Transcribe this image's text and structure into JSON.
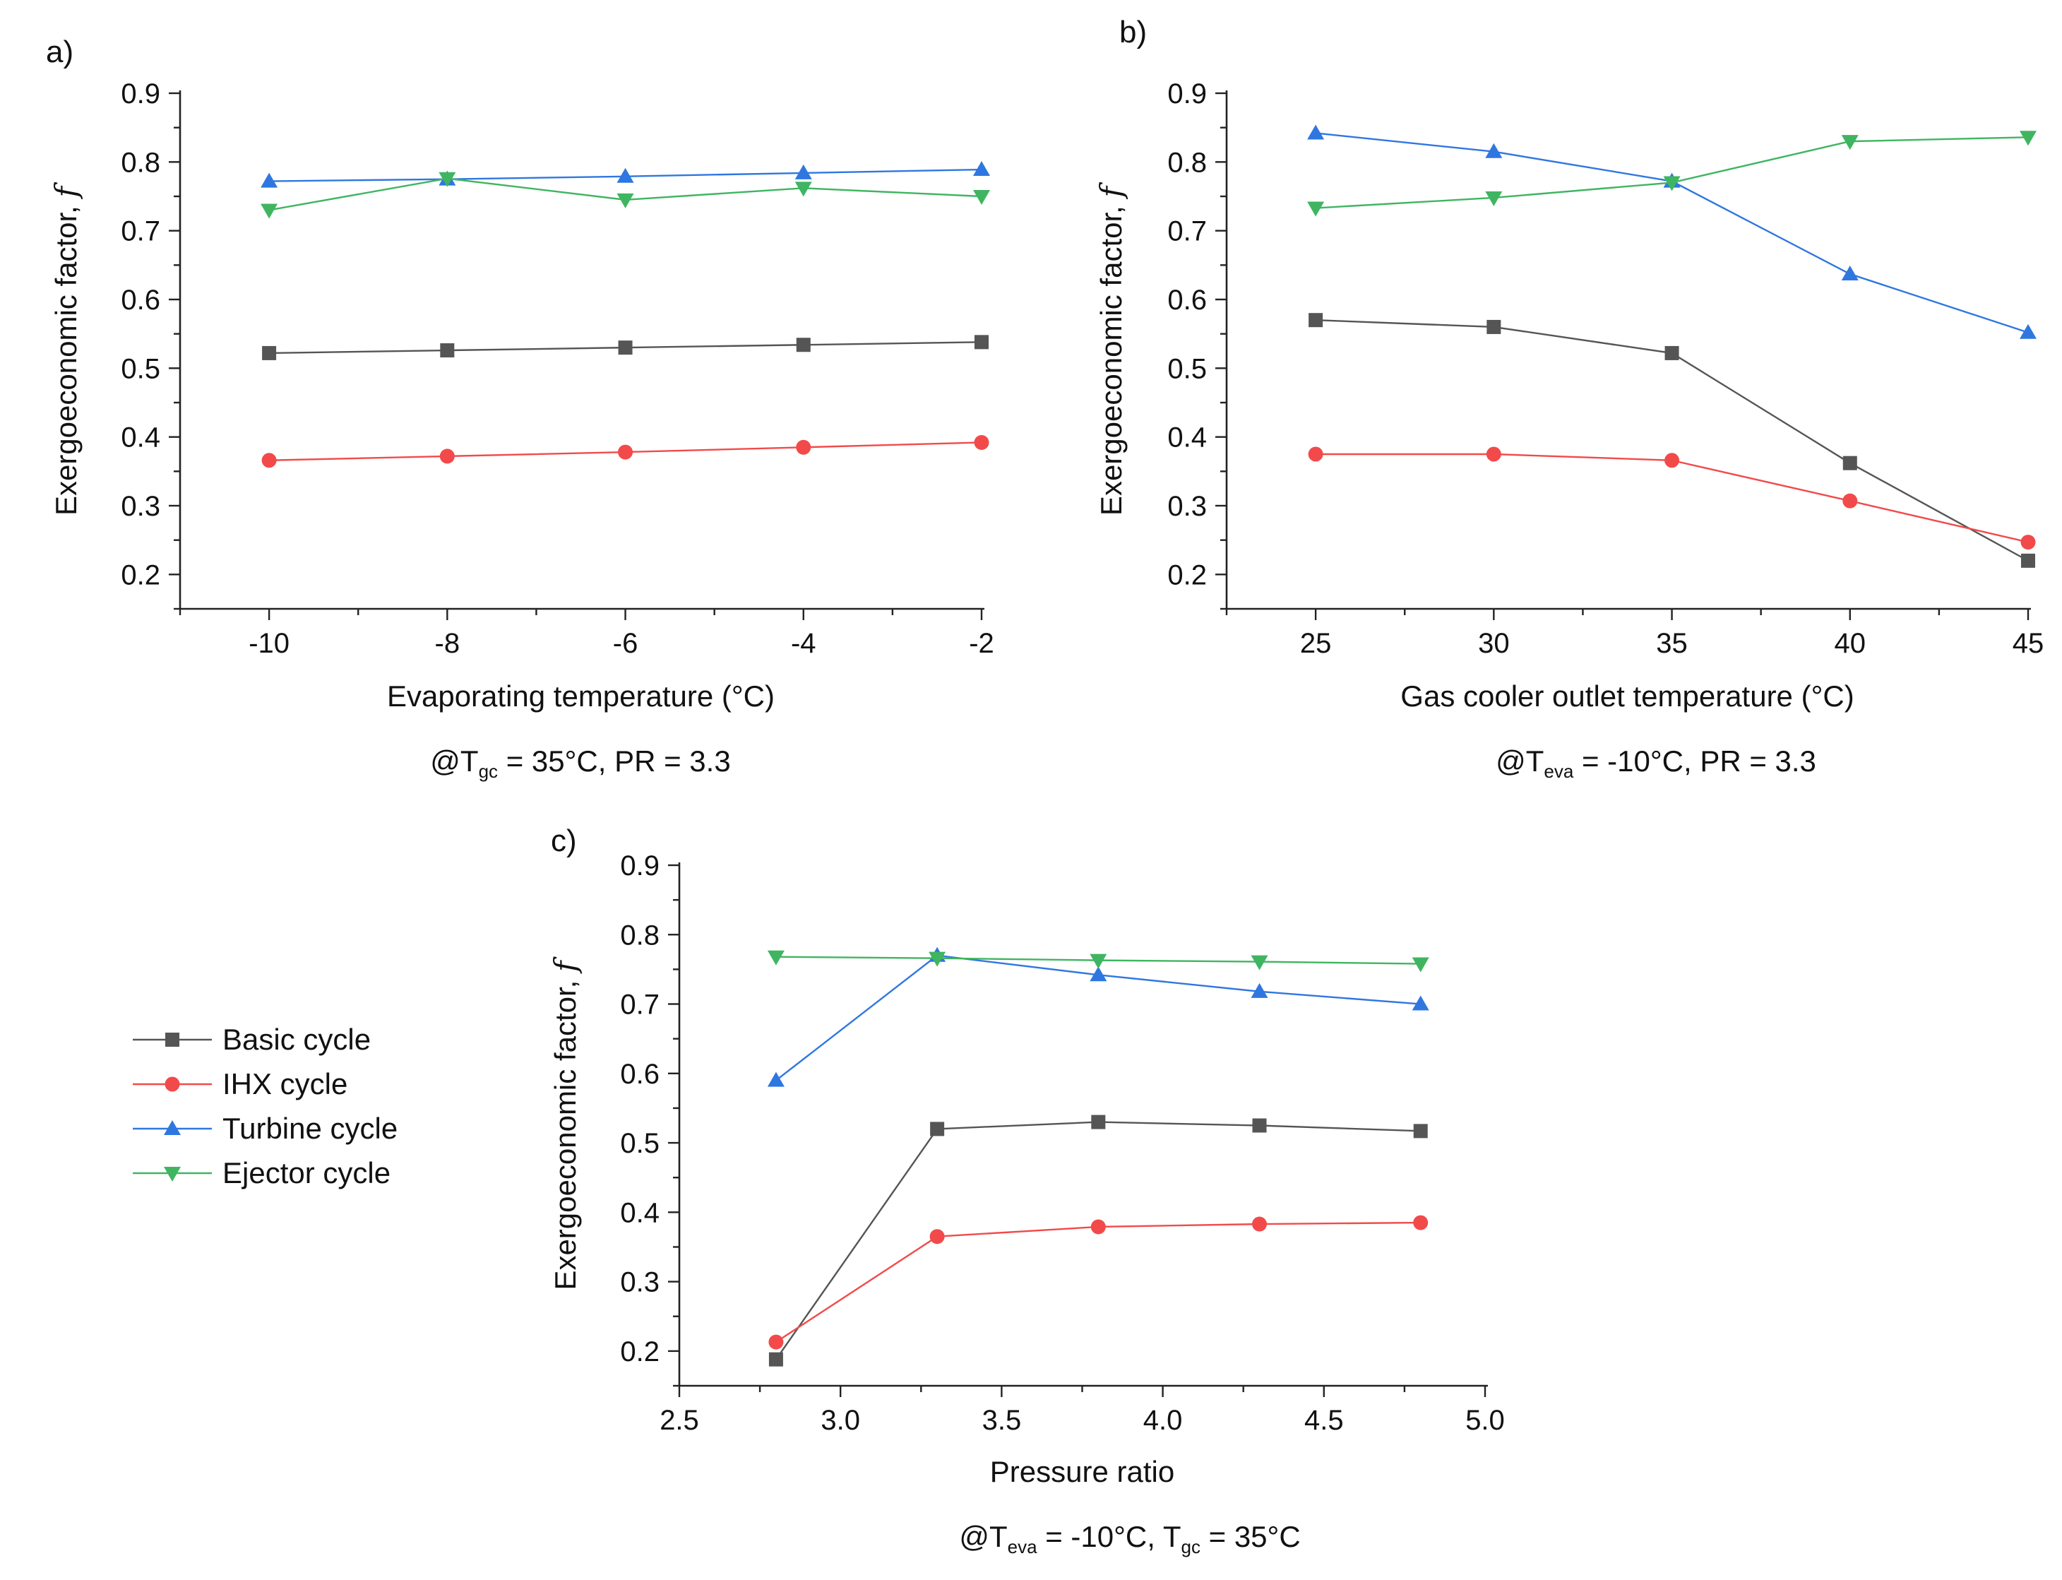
{
  "series_styles": [
    {
      "key": "basic",
      "name": "Basic cycle",
      "color": "#555555",
      "marker": "square"
    },
    {
      "key": "ihx",
      "name": "IHX cycle",
      "color": "#f24a4a",
      "marker": "circle"
    },
    {
      "key": "turbine",
      "name": "Turbine cycle",
      "color": "#2f77e0",
      "marker": "triangle-up"
    },
    {
      "key": "ejector",
      "name": "Ejector cycle",
      "color": "#3fb561",
      "marker": "triangle-down"
    }
  ],
  "legend": {
    "placement": "left-middle",
    "items": [
      "Basic cycle",
      "IHX cycle",
      "Turbine cycle",
      "Ejector cycle"
    ]
  },
  "chart_data": [
    {
      "panel_label": "a)",
      "type": "line",
      "xlabel": "Evaporating temperature (°C)",
      "ylabel_main": "Exergoeconomic factor, ",
      "ylabel_italic": "f",
      "xlim": [
        -11,
        -2
      ],
      "ylim": [
        0.15,
        0.9
      ],
      "xticks": [
        -10,
        -8,
        -6,
        -4,
        -2
      ],
      "xtick_labels": [
        "-10",
        "-8",
        "-6",
        "-4",
        "-2"
      ],
      "yticks": [
        0.2,
        0.3,
        0.4,
        0.5,
        0.6,
        0.7,
        0.8,
        0.9
      ],
      "ytick_labels": [
        "0.2",
        "0.3",
        "0.4",
        "0.5",
        "0.6",
        "0.7",
        "0.8",
        "0.9"
      ],
      "x": [
        -10,
        -8,
        -6,
        -4,
        -2
      ],
      "series": [
        {
          "name": "Basic cycle",
          "values": [
            0.522,
            0.526,
            0.53,
            0.534,
            0.538
          ]
        },
        {
          "name": "IHX cycle",
          "values": [
            0.366,
            0.372,
            0.378,
            0.385,
            0.392
          ]
        },
        {
          "name": "Turbine cycle",
          "values": [
            0.772,
            0.775,
            0.779,
            0.784,
            0.789
          ]
        },
        {
          "name": "Ejector cycle",
          "values": [
            0.73,
            0.776,
            0.745,
            0.762,
            0.75
          ]
        }
      ],
      "caption": {
        "prefix": "@T",
        "sub": "gc",
        "suffix": " = 35°C, PR = 3.3"
      }
    },
    {
      "panel_label": "b)",
      "type": "line",
      "xlabel": "Gas cooler outlet temperature (°C)",
      "ylabel_main": "Exergoeconomic factor, ",
      "ylabel_italic": "f",
      "xlim": [
        22.5,
        45
      ],
      "ylim": [
        0.15,
        0.9
      ],
      "xticks": [
        25,
        30,
        35,
        40,
        45
      ],
      "xtick_labels": [
        "25",
        "30",
        "35",
        "40",
        "45"
      ],
      "yticks": [
        0.2,
        0.3,
        0.4,
        0.5,
        0.6,
        0.7,
        0.8,
        0.9
      ],
      "ytick_labels": [
        "0.2",
        "0.3",
        "0.4",
        "0.5",
        "0.6",
        "0.7",
        "0.8",
        "0.9"
      ],
      "x": [
        25,
        30,
        35,
        40,
        45
      ],
      "series": [
        {
          "name": "Basic cycle",
          "values": [
            0.57,
            0.56,
            0.522,
            0.362,
            0.22
          ]
        },
        {
          "name": "IHX cycle",
          "values": [
            0.375,
            0.375,
            0.366,
            0.307,
            0.247
          ]
        },
        {
          "name": "Turbine cycle",
          "values": [
            0.842,
            0.815,
            0.772,
            0.637,
            0.552
          ]
        },
        {
          "name": "Ejector cycle",
          "values": [
            0.733,
            0.748,
            0.77,
            0.83,
            0.836
          ]
        }
      ],
      "caption": {
        "prefix": "@T",
        "sub": "eva",
        "suffix": " = -10°C, PR = 3.3"
      }
    },
    {
      "panel_label": "c)",
      "type": "line",
      "xlabel": "Pressure ratio",
      "ylabel_main": "Exergoeconomic factor, ",
      "ylabel_italic": "f",
      "xlim": [
        2.5,
        5.0
      ],
      "ylim": [
        0.15,
        0.9
      ],
      "xticks": [
        2.5,
        3.0,
        3.5,
        4.0,
        4.5,
        5.0
      ],
      "xtick_labels": [
        "2.5",
        "3.0",
        "3.5",
        "4.0",
        "4.5",
        "5.0"
      ],
      "yticks": [
        0.2,
        0.3,
        0.4,
        0.5,
        0.6,
        0.7,
        0.8,
        0.9
      ],
      "ytick_labels": [
        "0.2",
        "0.3",
        "0.4",
        "0.5",
        "0.6",
        "0.7",
        "0.8",
        "0.9"
      ],
      "x": [
        2.8,
        3.3,
        3.8,
        4.3,
        4.8
      ],
      "series": [
        {
          "name": "Basic cycle",
          "values": [
            0.188,
            0.52,
            0.53,
            0.525,
            0.517
          ]
        },
        {
          "name": "IHX cycle",
          "values": [
            0.213,
            0.365,
            0.379,
            0.383,
            0.385
          ]
        },
        {
          "name": "Turbine cycle",
          "values": [
            0.59,
            0.77,
            0.742,
            0.718,
            0.7
          ]
        },
        {
          "name": "Ejector cycle",
          "values": [
            0.768,
            0.766,
            0.763,
            0.761,
            0.758
          ]
        }
      ],
      "caption": {
        "prefix": "@T",
        "sub": "eva",
        "suffix": " = -10°C, T",
        "sub2": "gc",
        "suffix2": " = 35°C"
      }
    }
  ]
}
